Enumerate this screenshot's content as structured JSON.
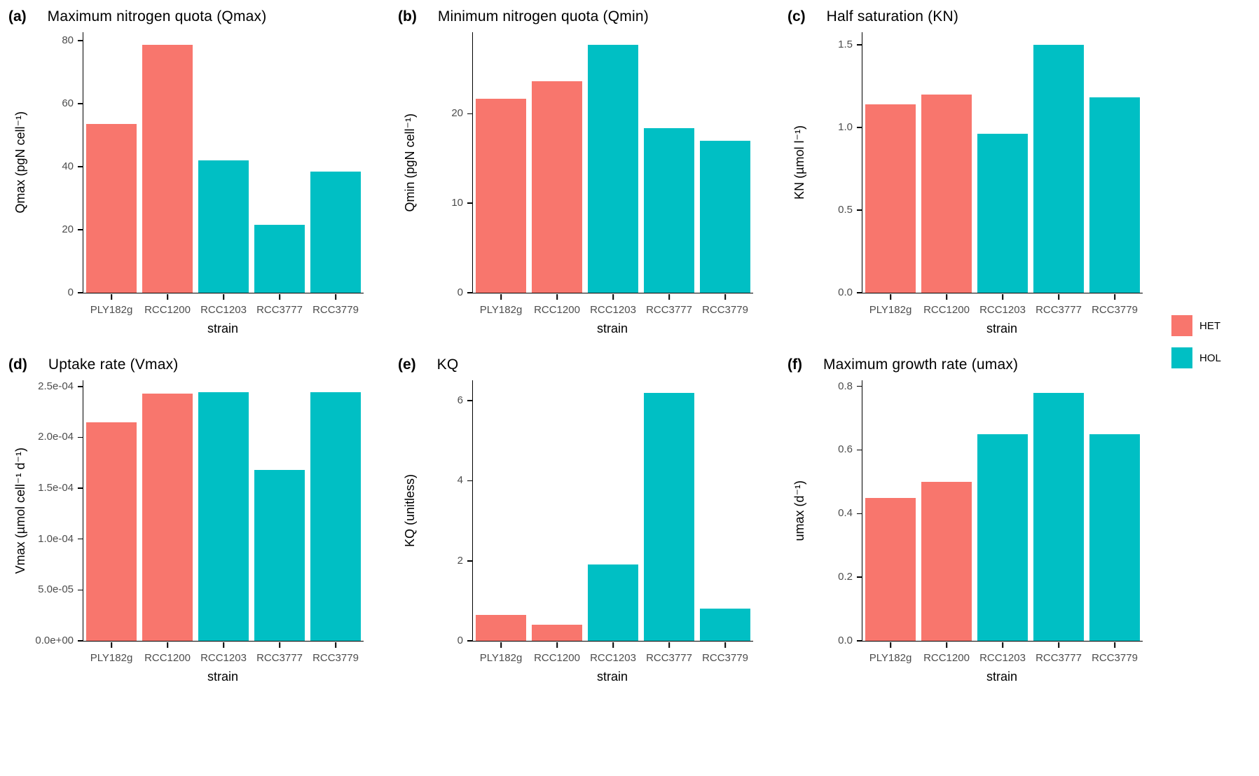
{
  "figure": {
    "background": "#ffffff",
    "axis_color": "#000000",
    "tick_label_color": "#4d4d4d",
    "colors": {
      "HET": "#F8766D",
      "HOL": "#00BFC4"
    },
    "legend": {
      "position": "right",
      "items": [
        {
          "label": "HET",
          "color": "#F8766D"
        },
        {
          "label": "HOL",
          "color": "#00BFC4"
        }
      ]
    }
  },
  "chart_data": [
    {
      "type": "bar",
      "tag": "(a)",
      "title": "Maximum nitrogen quota (Qmax)",
      "xlabel": "strain",
      "ylabel": "Qmax (pgN cell⁻¹)",
      "categories": [
        "PLY182g",
        "RCC1200",
        "RCC1203",
        "RCC3777",
        "RCC3779"
      ],
      "groups": [
        "HET",
        "HET",
        "HOL",
        "HOL",
        "HOL"
      ],
      "values": [
        53.5,
        78.7,
        42.0,
        21.5,
        38.5
      ],
      "ylim": [
        0,
        82.6
      ],
      "ytick_values": [
        0,
        20,
        40,
        60,
        80
      ],
      "ytick_labels": [
        "0",
        "20",
        "40",
        "60",
        "80"
      ],
      "grid": false,
      "legend_position": "none"
    },
    {
      "type": "bar",
      "tag": "(b)",
      "title": "Minimum nitrogen quota (Qmin)",
      "xlabel": "strain",
      "ylabel": "Qmin (pgN cell⁻¹)",
      "categories": [
        "PLY182g",
        "RCC1200",
        "RCC1203",
        "RCC3777",
        "RCC3779"
      ],
      "groups": [
        "HET",
        "HET",
        "HOL",
        "HOL",
        "HOL"
      ],
      "values": [
        21.7,
        23.6,
        27.7,
        18.4,
        17.0
      ],
      "ylim": [
        0,
        29.1
      ],
      "ytick_values": [
        0,
        10,
        20
      ],
      "ytick_labels": [
        "0",
        "10",
        "20"
      ],
      "grid": false,
      "legend_position": "none"
    },
    {
      "type": "bar",
      "tag": "(c)",
      "title": "Half saturation (KN)",
      "xlabel": "strain",
      "ylabel": "KN (µmol l⁻¹)",
      "categories": [
        "PLY182g",
        "RCC1200",
        "RCC1203",
        "RCC3777",
        "RCC3779"
      ],
      "groups": [
        "HET",
        "HET",
        "HOL",
        "HOL",
        "HOL"
      ],
      "values": [
        1.14,
        1.2,
        0.96,
        1.5,
        1.18
      ],
      "ylim": [
        0,
        1.575
      ],
      "ytick_values": [
        0,
        0.5,
        1.0,
        1.5
      ],
      "ytick_labels": [
        "0.0",
        "0.5",
        "1.0",
        "1.5"
      ],
      "grid": false,
      "legend_position": "none"
    },
    {
      "type": "bar",
      "tag": "(d)",
      "title": "Uptake rate (Vmax)",
      "xlabel": "strain",
      "ylabel": "Vmax (µmol cell⁻¹ d⁻¹)",
      "categories": [
        "PLY182g",
        "RCC1200",
        "RCC1203",
        "RCC3777",
        "RCC3779"
      ],
      "groups": [
        "HET",
        "HET",
        "HOL",
        "HOL",
        "HOL"
      ],
      "values": [
        0.000215,
        0.000243,
        0.000244,
        0.000168,
        0.000244
      ],
      "ylim": [
        0,
        0.000256
      ],
      "ytick_values": [
        0,
        5e-05,
        0.0001,
        0.00015,
        0.0002,
        0.00025
      ],
      "ytick_labels": [
        "0.0e+00",
        "5.0e-05",
        "1.0e-04",
        "1.5e-04",
        "2.0e-04",
        "2.5e-04"
      ],
      "grid": false,
      "legend_position": "none"
    },
    {
      "type": "bar",
      "tag": "(e)",
      "title": "KQ",
      "xlabel": "strain",
      "ylabel": "KQ (unitless)",
      "categories": [
        "PLY182g",
        "RCC1200",
        "RCC1203",
        "RCC3777",
        "RCC3779"
      ],
      "groups": [
        "HET",
        "HET",
        "HOL",
        "HOL",
        "HOL"
      ],
      "values": [
        0.65,
        0.4,
        1.9,
        6.2,
        0.8
      ],
      "ylim": [
        0,
        6.51
      ],
      "ytick_values": [
        0,
        2,
        4,
        6
      ],
      "ytick_labels": [
        "0",
        "2",
        "4",
        "6"
      ],
      "grid": false,
      "legend_position": "none"
    },
    {
      "type": "bar",
      "tag": "(f)",
      "title": "Maximum growth rate (umax)",
      "xlabel": "strain",
      "ylabel": "umax (d⁻¹)",
      "categories": [
        "PLY182g",
        "RCC1200",
        "RCC1203",
        "RCC3777",
        "RCC3779"
      ],
      "groups": [
        "HET",
        "HET",
        "HOL",
        "HOL",
        "HOL"
      ],
      "values": [
        0.45,
        0.5,
        0.65,
        0.78,
        0.65
      ],
      "ylim": [
        0,
        0.819
      ],
      "ytick_values": [
        0,
        0.2,
        0.4,
        0.6,
        0.8
      ],
      "ytick_labels": [
        "0.0",
        "0.2",
        "0.4",
        "0.6",
        "0.8"
      ],
      "grid": false,
      "legend_position": "none"
    }
  ]
}
